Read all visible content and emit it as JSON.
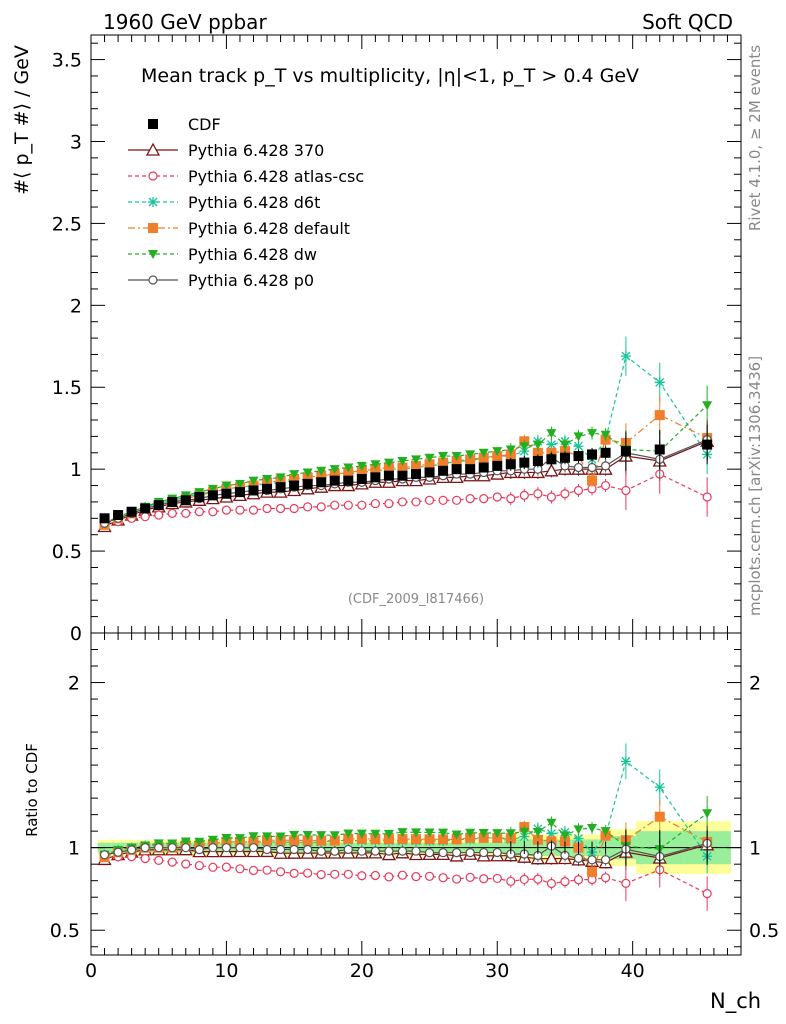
{
  "header": {
    "left": "1960 GeV ppbar",
    "right": "Soft QCD"
  },
  "side": {
    "rivet": "Rivet 4.1.0, ≥ 2M events",
    "mcplots": "mcplots.cern.ch [arXiv:1306.3436]"
  },
  "chart_data": {
    "type": "scatter",
    "title": "Mean track p_T vs multiplicity, |η|<1, p_T > 0.4 GeV",
    "ylabel": "#⟨ p_T #⟩ / GeV",
    "xlabel": "N_ch",
    "ratio_ylabel": "Ratio to CDF",
    "analysis": "(CDF_2009_I817466)",
    "xlim": [
      0,
      48
    ],
    "ylim": [
      0,
      3.65
    ],
    "ratio_ylim": [
      0.35,
      2.3
    ],
    "x_ticks": [
      "0",
      "10",
      "20",
      "30",
      "40"
    ],
    "y_ticks": [
      "0",
      "0.5",
      "1",
      "1.5",
      "2",
      "2.5",
      "3",
      "3.5"
    ],
    "ratio_ticks": [
      "0.5",
      "1",
      "2"
    ],
    "x": [
      1,
      2,
      3,
      4,
      5,
      6,
      7,
      8,
      9,
      10,
      11,
      12,
      13,
      14,
      15,
      16,
      17,
      18,
      19,
      20,
      21,
      22,
      23,
      24,
      25,
      26,
      27,
      28,
      29,
      30,
      31,
      32,
      33,
      34,
      35,
      36,
      37,
      38,
      39.5,
      42,
      45.5
    ],
    "series": [
      {
        "name": "CDF",
        "role": "data",
        "color": "#000000",
        "marker": "square",
        "values": [
          0.7,
          0.72,
          0.74,
          0.76,
          0.78,
          0.8,
          0.81,
          0.83,
          0.84,
          0.85,
          0.86,
          0.87,
          0.88,
          0.89,
          0.9,
          0.91,
          0.92,
          0.93,
          0.93,
          0.94,
          0.95,
          0.96,
          0.96,
          0.97,
          0.98,
          0.99,
          1.0,
          1.0,
          1.01,
          1.02,
          1.03,
          1.04,
          1.05,
          1.06,
          1.07,
          1.08,
          1.09,
          1.1,
          1.11,
          1.12,
          1.15
        ]
      },
      {
        "name": "Pythia 6.428 370",
        "color": "#7a1515",
        "marker": "triangle-open",
        "dash": "",
        "values": [
          0.65,
          0.69,
          0.72,
          0.75,
          0.77,
          0.79,
          0.8,
          0.81,
          0.82,
          0.83,
          0.84,
          0.85,
          0.86,
          0.86,
          0.87,
          0.88,
          0.89,
          0.9,
          0.9,
          0.91,
          0.92,
          0.92,
          0.93,
          0.93,
          0.94,
          0.95,
          0.95,
          0.96,
          0.96,
          0.97,
          0.98,
          0.98,
          0.98,
          0.99,
          1.0,
          1.0,
          1.0,
          1.0,
          1.08,
          1.05,
          1.17
        ]
      },
      {
        "name": "Pythia 6.428 atlas-csc",
        "color": "#e8395a",
        "marker": "circle-open",
        "dash": "4,3",
        "values": [
          0.66,
          0.68,
          0.7,
          0.71,
          0.72,
          0.73,
          0.73,
          0.74,
          0.74,
          0.75,
          0.75,
          0.75,
          0.76,
          0.76,
          0.76,
          0.77,
          0.77,
          0.78,
          0.78,
          0.78,
          0.79,
          0.79,
          0.8,
          0.8,
          0.81,
          0.81,
          0.81,
          0.82,
          0.82,
          0.83,
          0.82,
          0.84,
          0.85,
          0.83,
          0.85,
          0.87,
          0.88,
          0.9,
          0.87,
          0.97,
          0.83
        ]
      },
      {
        "name": "Pythia 6.428 d6t",
        "color": "#18c49a",
        "marker": "star",
        "dash": "4,3",
        "values": [
          0.67,
          0.71,
          0.74,
          0.77,
          0.79,
          0.81,
          0.83,
          0.85,
          0.86,
          0.88,
          0.89,
          0.9,
          0.91,
          0.92,
          0.93,
          0.94,
          0.95,
          0.97,
          0.97,
          0.98,
          0.99,
          1.0,
          1.0,
          1.01,
          1.02,
          1.03,
          1.05,
          1.05,
          1.07,
          1.08,
          1.08,
          1.11,
          1.17,
          1.15,
          1.17,
          1.14,
          1.06,
          1.18,
          1.69,
          1.53,
          1.09
        ]
      },
      {
        "name": "Pythia 6.428 default",
        "color": "#f07e2a",
        "marker": "square",
        "dash": "7,3,2,3",
        "values": [
          0.66,
          0.7,
          0.73,
          0.76,
          0.78,
          0.8,
          0.82,
          0.84,
          0.86,
          0.88,
          0.89,
          0.9,
          0.92,
          0.93,
          0.94,
          0.95,
          0.96,
          0.97,
          0.98,
          0.99,
          1.0,
          1.01,
          1.01,
          1.02,
          1.03,
          1.04,
          1.05,
          1.06,
          1.07,
          1.08,
          1.09,
          1.17,
          1.1,
          1.1,
          1.11,
          1.08,
          0.93,
          1.18,
          1.16,
          1.33,
          1.19
        ]
      },
      {
        "name": "Pythia 6.428 dw",
        "color": "#22b022",
        "marker": "triangle-down",
        "dash": "4,3",
        "values": [
          0.67,
          0.71,
          0.74,
          0.77,
          0.8,
          0.82,
          0.84,
          0.86,
          0.88,
          0.9,
          0.91,
          0.93,
          0.94,
          0.95,
          0.97,
          0.98,
          0.99,
          1.0,
          1.01,
          1.02,
          1.03,
          1.04,
          1.05,
          1.06,
          1.07,
          1.08,
          1.08,
          1.09,
          1.1,
          1.11,
          1.12,
          1.14,
          1.15,
          1.22,
          1.15,
          1.2,
          1.22,
          1.21,
          1.12,
          1.11,
          1.39
        ]
      },
      {
        "name": "Pythia 6.428 p0",
        "color": "#555555",
        "marker": "circle-open",
        "dash": "",
        "values": [
          0.67,
          0.7,
          0.73,
          0.76,
          0.78,
          0.8,
          0.81,
          0.82,
          0.84,
          0.85,
          0.86,
          0.87,
          0.87,
          0.88,
          0.89,
          0.9,
          0.9,
          0.91,
          0.92,
          0.92,
          0.93,
          0.94,
          0.94,
          0.95,
          0.95,
          0.96,
          0.97,
          0.97,
          0.98,
          0.99,
          0.99,
          1.0,
          1.0,
          1.07,
          1.02,
          1.01,
          1.01,
          1.02,
          1.1,
          1.06,
          1.18
        ]
      }
    ]
  }
}
